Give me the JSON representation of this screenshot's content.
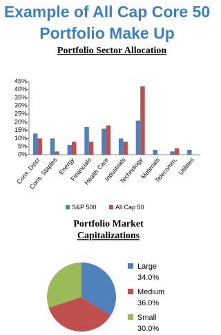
{
  "title": "Example of All Cap Core 50 Portfolio Make Up",
  "chart_data": [
    {
      "type": "bar",
      "title": "Portfolio Sector Allocation",
      "categories": [
        "Cons. Discr",
        "Cons. Staples",
        "Energy",
        "Financials",
        "Health Care",
        "Industrials",
        "Technology",
        "Materials",
        "Telecomm.",
        "Utilities"
      ],
      "series": [
        {
          "name": "S&P 500",
          "color": "#4f81bd",
          "values": [
            13,
            10,
            6,
            17,
            16,
            10,
            21,
            3,
            2,
            3
          ]
        },
        {
          "name": "All Cap 50",
          "color": "#c0504d",
          "values": [
            10,
            2,
            8,
            8,
            18,
            8,
            42,
            0,
            4,
            0
          ]
        }
      ],
      "ylim": [
        0,
        45
      ],
      "yticks": [
        {
          "value": 0,
          "label": "0%"
        },
        {
          "value": 5,
          "label": "5%"
        },
        {
          "value": 10,
          "label": "10%"
        },
        {
          "value": 15,
          "label": "15%"
        },
        {
          "value": 20,
          "label": "20%"
        },
        {
          "value": 25,
          "label": "25%"
        },
        {
          "value": 30,
          "label": "30%"
        },
        {
          "value": 35,
          "label": "35%"
        },
        {
          "value": 40,
          "label": "40%"
        },
        {
          "value": 45,
          "label": "45%"
        }
      ],
      "grid": false,
      "legend": "bottom"
    },
    {
      "type": "pie",
      "title_lines": [
        "Portfolio Market",
        "Capitalizations"
      ],
      "categories": [
        "Large",
        "Medium",
        "Small"
      ],
      "values": [
        34,
        36,
        30
      ],
      "value_labels": [
        "34.0%",
        "36.0%",
        "30.0%"
      ],
      "colors": [
        "#4f81bd",
        "#c0504d",
        "#9bbb59"
      ],
      "legend": "right"
    }
  ]
}
